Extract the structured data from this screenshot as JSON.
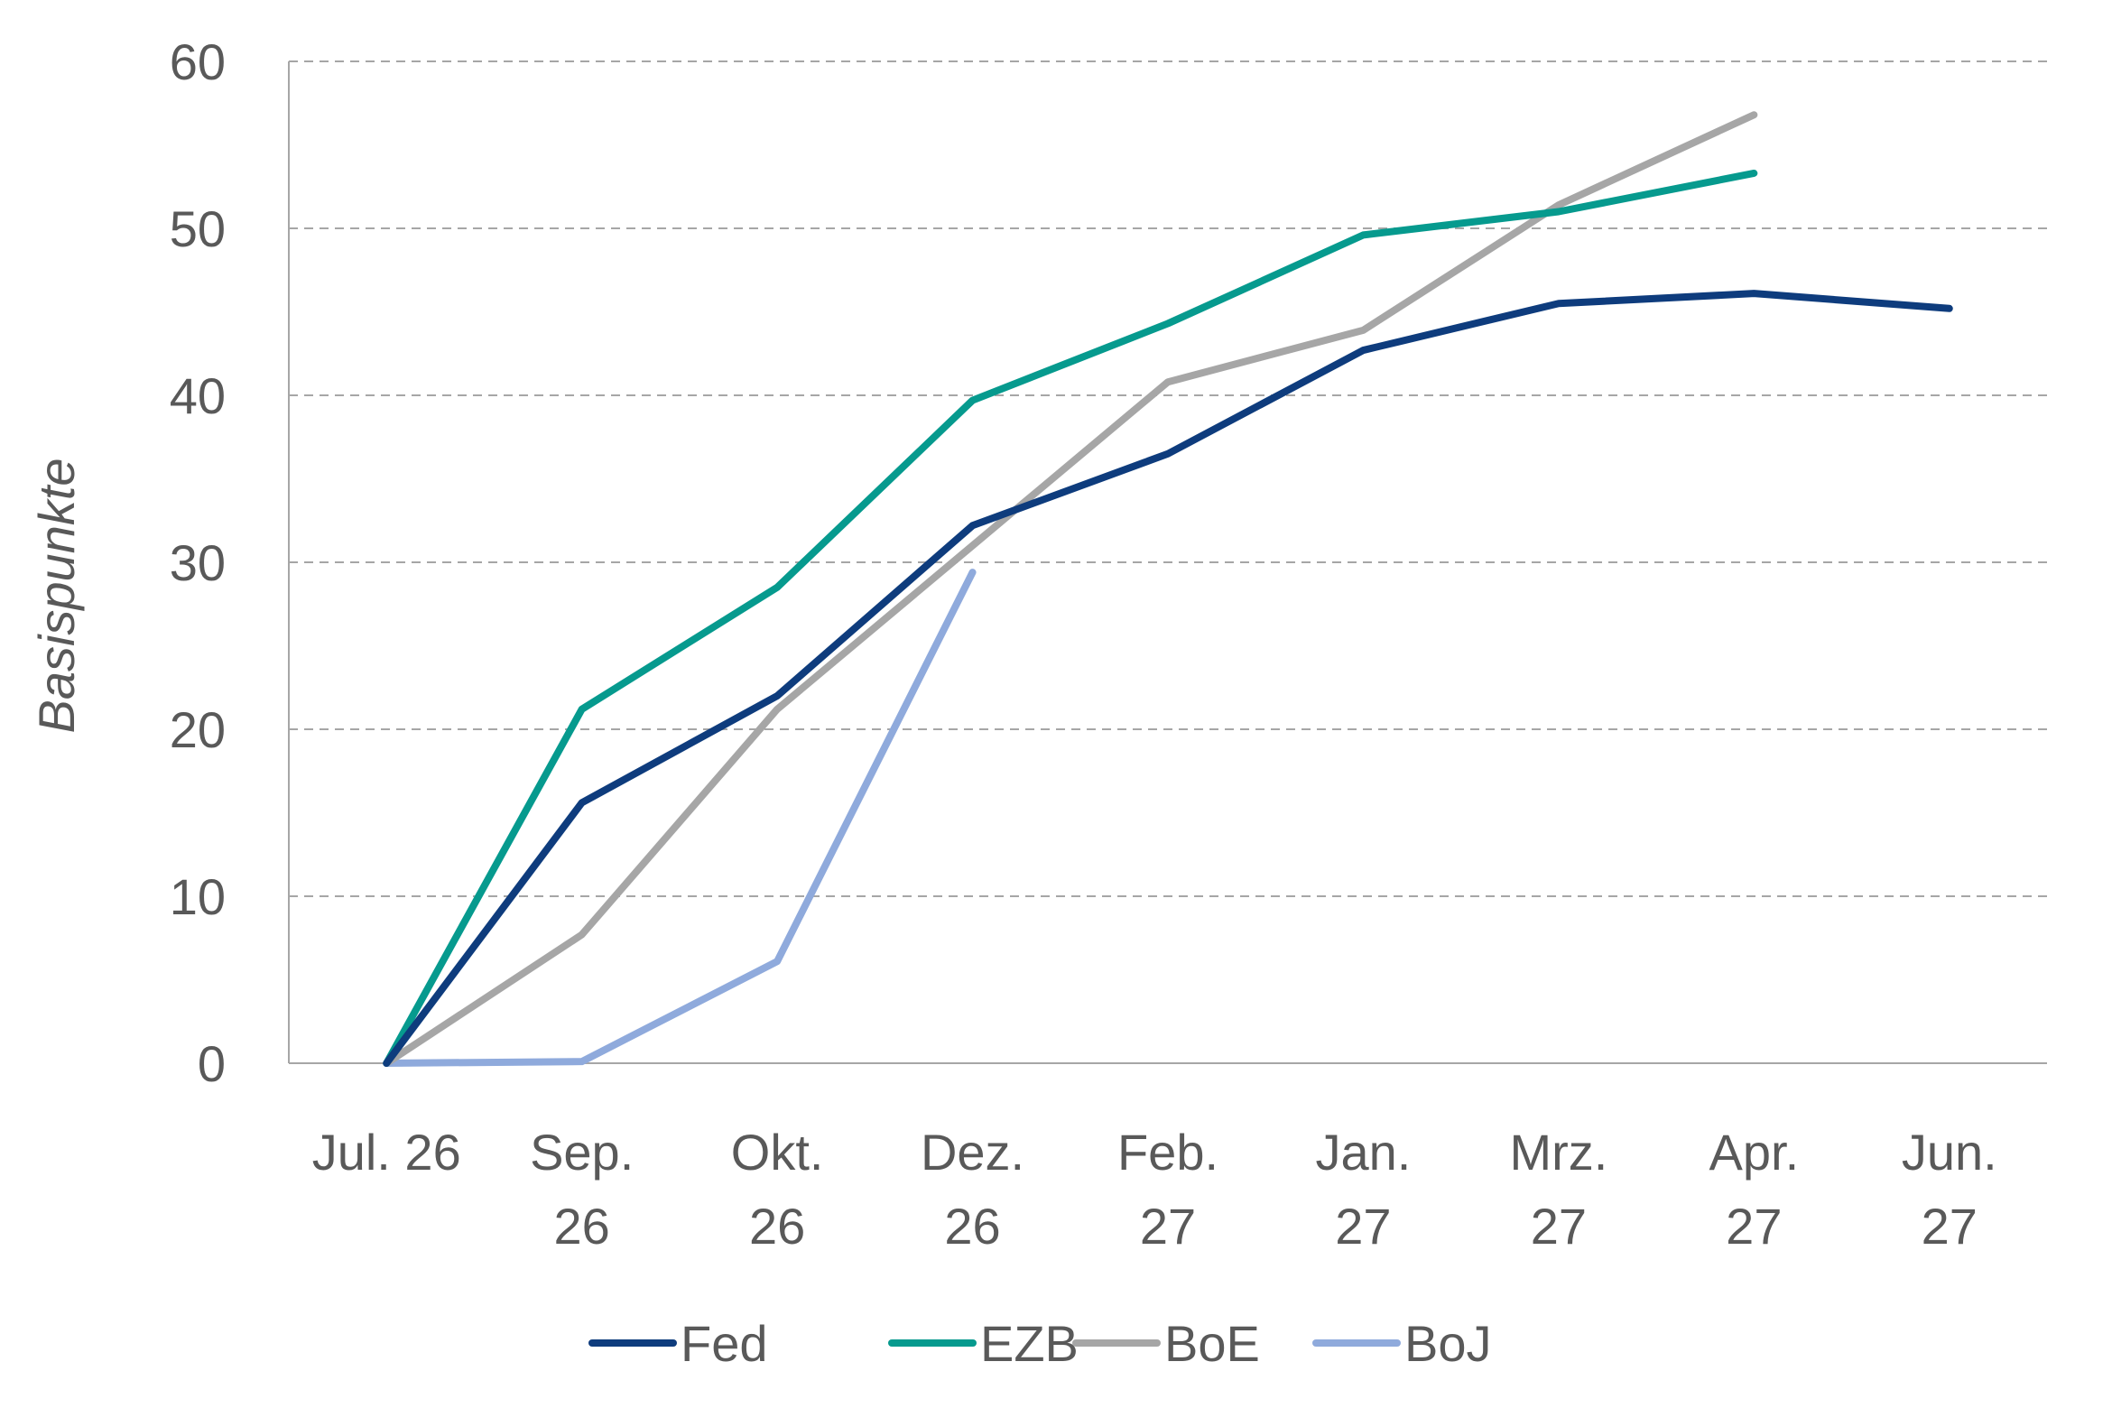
{
  "chart_data": {
    "type": "line",
    "categories": [
      [
        "Jul. 26"
      ],
      [
        "Sep.",
        "26"
      ],
      [
        "Okt.",
        "26"
      ],
      [
        "Dez.",
        "26"
      ],
      [
        "Feb.",
        "27"
      ],
      [
        "Jan.",
        "27"
      ],
      [
        "Mrz.",
        "27"
      ],
      [
        "Apr.",
        "27"
      ],
      [
        "Jun.",
        "27"
      ]
    ],
    "ylabel": "Basispunkte",
    "ylim": [
      0,
      60
    ],
    "yticks": [
      0,
      10,
      20,
      30,
      40,
      50,
      60
    ],
    "grid": "horizontal dashed",
    "legend_position": "bottom",
    "series": [
      {
        "name": "Fed",
        "color": "#0e3c7d",
        "values": [
          0,
          15.6,
          22,
          32.2,
          36.5,
          42.7,
          45.5,
          46.1,
          45.2
        ]
      },
      {
        "name": "EZB",
        "color": "#069a8e",
        "values": [
          0,
          21.2,
          28.5,
          39.7,
          44.3,
          49.6,
          51,
          53.3,
          null
        ]
      },
      {
        "name": "BoE",
        "color": "#a6a6a6",
        "values": [
          0,
          7.7,
          21.2,
          31,
          40.8,
          43.9,
          51.4,
          56.8,
          null
        ]
      },
      {
        "name": "BoJ",
        "color": "#8faadc",
        "values": [
          0,
          0.1,
          6.1,
          29.4,
          null,
          null,
          null,
          null,
          null
        ]
      }
    ]
  }
}
